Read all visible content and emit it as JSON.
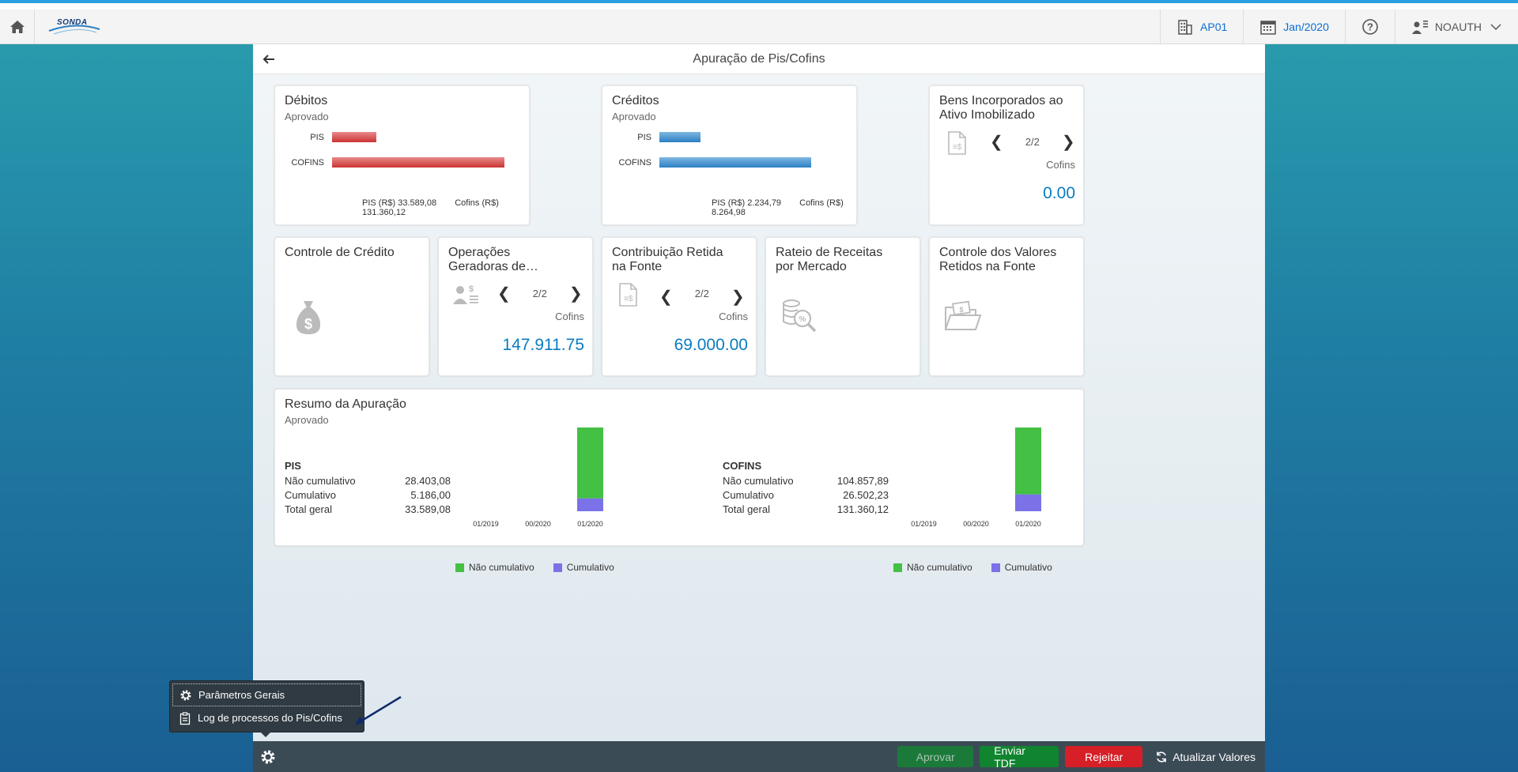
{
  "shell": {
    "logo_text": "SONDA",
    "company": "AP01",
    "period": "Jan/2020",
    "user": "NOAUTH"
  },
  "page": {
    "title": "Apuração de Pis/Cofins"
  },
  "tiles": {
    "debitos": {
      "title": "Débitos",
      "subtitle": "Aprovado",
      "bars": [
        {
          "label": "PIS",
          "value": 33589.08
        },
        {
          "label": "COFINS",
          "value": 131360.12
        }
      ],
      "footer_pis": "PIS (R$) 33.589,08",
      "footer_cofins": "Cofins (R$) 131.360,12",
      "color": "#cc3333"
    },
    "creditos": {
      "title": "Créditos",
      "subtitle": "Aprovado",
      "bars": [
        {
          "label": "PIS",
          "value": 2234.79
        },
        {
          "label": "COFINS",
          "value": 8264.98
        }
      ],
      "footer_pis": "PIS (R$) 2.234,79",
      "footer_cofins": "Cofins (R$) 8.264,98",
      "color": "#2b7fc4"
    },
    "bens": {
      "title_line1": "Bens Incorporados ao",
      "title_line2": "Ativo Imobilizado",
      "pager": "2/2",
      "unit": "Cofins",
      "value": "0.00"
    },
    "controle_credito": {
      "title": "Controle de Crédito"
    },
    "operacoes": {
      "title_line1": "Operações",
      "title_line2": "Geradoras de…",
      "pager": "2/2",
      "unit": "Cofins",
      "value": "147.911.75"
    },
    "contribuicao": {
      "title_line1": "Contribuição Retida",
      "title_line2": "na Fonte",
      "pager": "2/2",
      "unit": "Cofins",
      "value": "69.000.00"
    },
    "rateio": {
      "title_line1": "Rateio de Receitas",
      "title_line2": "por Mercado"
    },
    "controle_valores": {
      "title_line1": "Controle dos Valores",
      "title_line2": "Retidos na Fonte"
    },
    "resumo": {
      "title": "Resumo da Apuração",
      "subtitle": "Aprovado",
      "pis": {
        "header": "PIS",
        "rows": [
          {
            "k": "Não cumulativo",
            "v": "28.403,08"
          },
          {
            "k": "Cumulativo",
            "v": "5.186,00"
          },
          {
            "k": "Total geral",
            "v": "33.589,08"
          }
        ]
      },
      "cofins": {
        "header": "COFINS",
        "rows": [
          {
            "k": "Não cumulativo",
            "v": "104.857,89"
          },
          {
            "k": "Cumulativo",
            "v": "26.502,23"
          },
          {
            "k": "Total geral",
            "v": "131.360,12"
          }
        ]
      },
      "legend_nc": "Não cumulativo",
      "legend_c": "Cumulativo",
      "color_nc": "#44c044",
      "color_c": "#7b72e8"
    }
  },
  "chart_data": [
    {
      "type": "bar",
      "stacked": true,
      "categories": [
        "01/2019",
        "00/2020",
        "01/2020"
      ],
      "series": [
        {
          "name": "Não cumulativo",
          "values": [
            0,
            0,
            28403.08
          ]
        },
        {
          "name": "Cumulativo",
          "values": [
            0,
            0,
            5186.0
          ]
        }
      ]
    },
    {
      "type": "bar",
      "stacked": true,
      "categories": [
        "01/2019",
        "00/2020",
        "01/2020"
      ],
      "series": [
        {
          "name": "Não cumulativo",
          "values": [
            0,
            0,
            104857.89
          ]
        },
        {
          "name": "Cumulativo",
          "values": [
            0,
            0,
            26502.23
          ]
        }
      ]
    }
  ],
  "popover": {
    "items": [
      {
        "label": "Parâmetros Gerais",
        "icon": "gear-icon"
      },
      {
        "label": "Log de processos do Pis/Cofins",
        "icon": "clipboard-icon"
      }
    ]
  },
  "footer": {
    "approve": "Aprovar",
    "send_tdf": "Enviar TDF",
    "reject": "Rejeitar",
    "refresh": "Atualizar Valores"
  }
}
